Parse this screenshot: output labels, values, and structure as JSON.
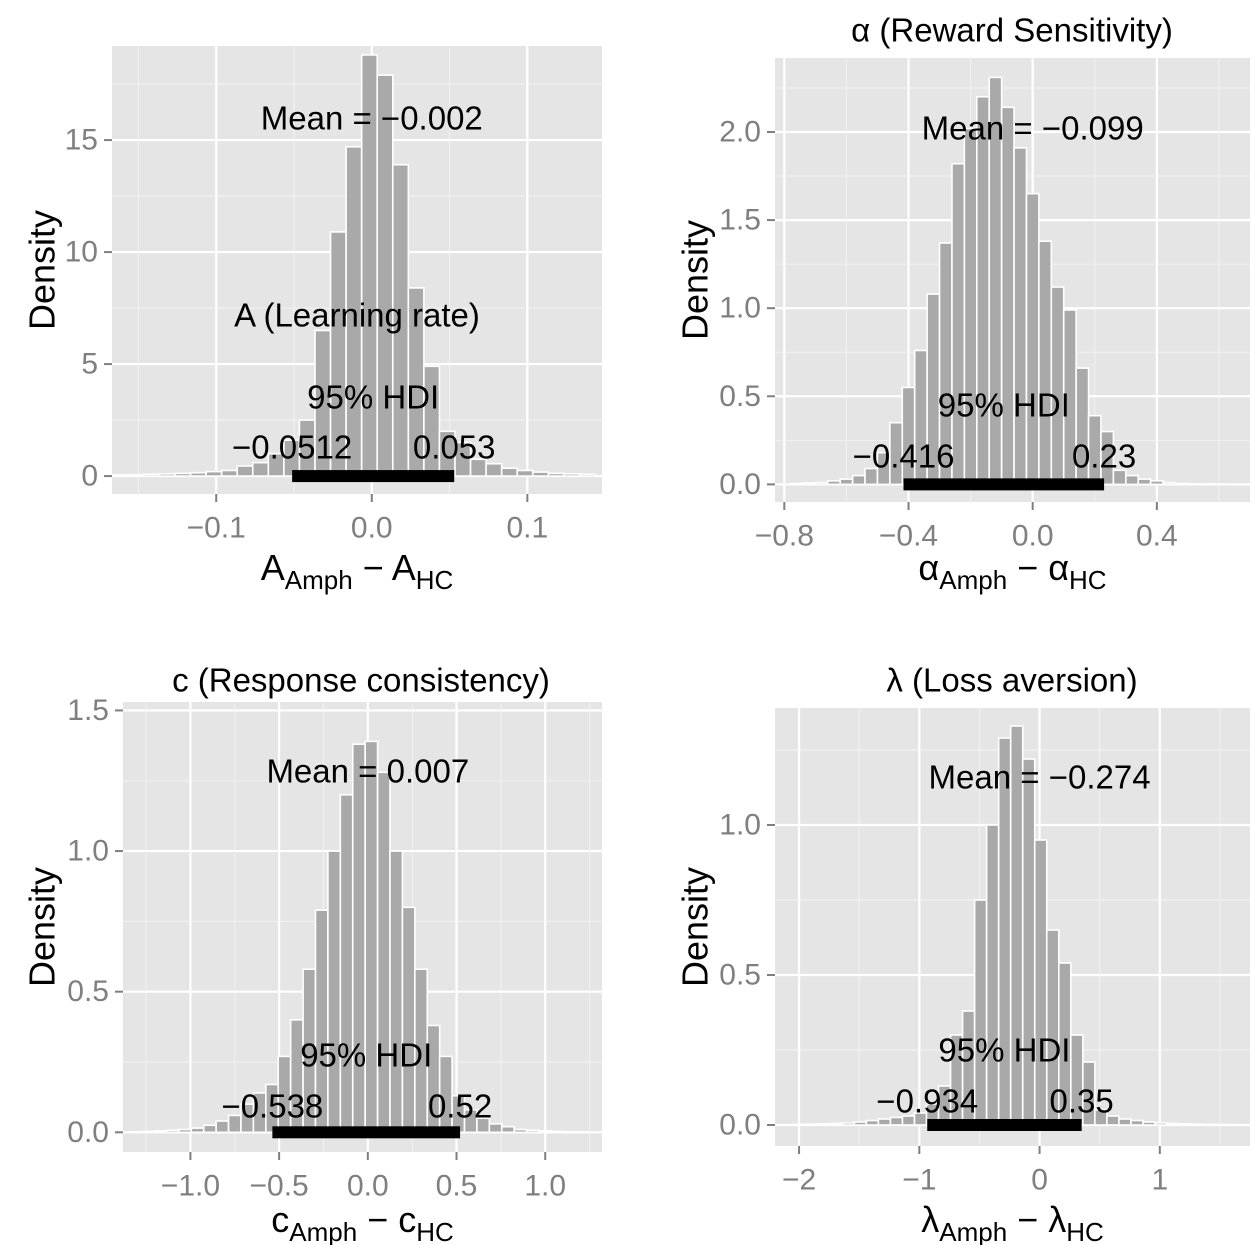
{
  "chart_data": [
    {
      "type": "bar",
      "title": "A (Learning rate)",
      "ylabel": "Density",
      "xlabel": {
        "var": "A",
        "sub1": "Amph",
        "sub2": "HC"
      },
      "xlim": [
        -0.167,
        0.148
      ],
      "ylim": [
        -0.8,
        19.2
      ],
      "xticks": [
        {
          "v": -0.1,
          "label": "−0.1"
        },
        {
          "v": 0.0,
          "label": "0.0"
        },
        {
          "v": 0.1,
          "label": "0.1"
        }
      ],
      "yticks": [
        {
          "v": 0,
          "label": "0"
        },
        {
          "v": 5,
          "label": "5"
        },
        {
          "v": 10,
          "label": "10"
        },
        {
          "v": 15,
          "label": "15"
        }
      ],
      "bin_edges": [
        -0.1665,
        -0.1565,
        -0.1465,
        -0.1365,
        -0.1265,
        -0.1165,
        -0.1065,
        -0.0965,
        -0.0865,
        -0.0765,
        -0.0665,
        -0.0565,
        -0.0465,
        -0.0365,
        -0.0265,
        -0.0165,
        -0.0065,
        0.0035,
        0.0135,
        0.0235,
        0.0335,
        0.0435,
        0.0535,
        0.0635,
        0.0735,
        0.0835,
        0.0935,
        0.1035,
        0.1135,
        0.1235,
        0.1335,
        0.1435
      ],
      "values": [
        0.05,
        0.06,
        0.08,
        0.1,
        0.12,
        0.15,
        0.2,
        0.25,
        0.45,
        0.6,
        1.0,
        1.6,
        2.5,
        6.5,
        10.9,
        14.7,
        18.8,
        17.9,
        13.9,
        8.4,
        4.9,
        2.0,
        1.5,
        0.75,
        0.55,
        0.35,
        0.25,
        0.18,
        0.12,
        0.1,
        0.08
      ],
      "mean_label": "Mean = −0.002",
      "hdi": {
        "label": "95% HDI",
        "low": -0.0512,
        "high": 0.053,
        "low_label": "−0.0512",
        "high_label": "0.053"
      }
    },
    {
      "type": "bar",
      "title": "α (Reward Sensitivity)",
      "ylabel": "Density",
      "xlabel": {
        "var": "α",
        "sub1": "Amph",
        "sub2": "HC"
      },
      "xlim": [
        -0.83,
        0.7
      ],
      "ylim": [
        -0.1,
        2.42
      ],
      "xticks": [
        {
          "v": -0.8,
          "label": "−0.8"
        },
        {
          "v": -0.4,
          "label": "−0.4"
        },
        {
          "v": 0.0,
          "label": "0.0"
        },
        {
          "v": 0.4,
          "label": "0.4"
        }
      ],
      "yticks": [
        {
          "v": 0.0,
          "label": "0.0"
        },
        {
          "v": 0.5,
          "label": "0.5"
        },
        {
          "v": 1.0,
          "label": "1.0"
        },
        {
          "v": 1.5,
          "label": "1.5"
        },
        {
          "v": 2.0,
          "label": "2.0"
        }
      ],
      "bin_edges": [
        -0.78,
        -0.74,
        -0.7,
        -0.66,
        -0.62,
        -0.58,
        -0.54,
        -0.5,
        -0.46,
        -0.42,
        -0.38,
        -0.34,
        -0.3,
        -0.26,
        -0.22,
        -0.18,
        -0.14,
        -0.1,
        -0.06,
        -0.02,
        0.02,
        0.06,
        0.1,
        0.14,
        0.18,
        0.22,
        0.26,
        0.3,
        0.34,
        0.38,
        0.42,
        0.46,
        0.5,
        0.54,
        0.58,
        0.62
      ],
      "values": [
        0.005,
        0.008,
        0.01,
        0.02,
        0.03,
        0.05,
        0.09,
        0.18,
        0.35,
        0.55,
        0.76,
        1.08,
        1.37,
        1.82,
        2.02,
        2.2,
        2.31,
        2.14,
        1.91,
        1.65,
        1.38,
        1.12,
        0.99,
        0.66,
        0.39,
        0.3,
        0.08,
        0.05,
        0.03,
        0.02,
        0.01,
        0.005,
        0.003,
        0.002,
        0.001
      ],
      "mean_label": "Mean = −0.099",
      "hdi": {
        "label": "95% HDI",
        "low": -0.416,
        "high": 0.23,
        "low_label": "−0.416",
        "high_label": "0.23"
      }
    },
    {
      "type": "bar",
      "title": "c (Response consistency)",
      "ylabel": "Density",
      "xlabel": {
        "var": "c",
        "sub1": "Amph",
        "sub2": "HC"
      },
      "xlim": [
        -1.38,
        1.32
      ],
      "ylim": [
        -0.07,
        1.53
      ],
      "xticks": [
        {
          "v": -1.0,
          "label": "−1.0"
        },
        {
          "v": -0.5,
          "label": "−0.5"
        },
        {
          "v": 0.0,
          "label": "0.0"
        },
        {
          "v": 0.5,
          "label": "0.5"
        },
        {
          "v": 1.0,
          "label": "1.0"
        }
      ],
      "yticks": [
        {
          "v": 0.0,
          "label": "0.0"
        },
        {
          "v": 0.5,
          "label": "0.5"
        },
        {
          "v": 1.0,
          "label": "1.0"
        },
        {
          "v": 1.5,
          "label": "1.5"
        }
      ],
      "bin_edges": [
        -1.345,
        -1.275,
        -1.205,
        -1.135,
        -1.065,
        -0.995,
        -0.925,
        -0.855,
        -0.785,
        -0.715,
        -0.645,
        -0.575,
        -0.505,
        -0.435,
        -0.365,
        -0.295,
        -0.225,
        -0.155,
        -0.085,
        -0.015,
        0.055,
        0.125,
        0.195,
        0.265,
        0.335,
        0.405,
        0.475,
        0.545,
        0.615,
        0.685,
        0.755,
        0.825,
        0.895,
        0.965,
        1.035,
        1.105,
        1.175,
        1.245
      ],
      "values": [
        0.002,
        0.003,
        0.005,
        0.007,
        0.01,
        0.015,
        0.025,
        0.04,
        0.06,
        0.1,
        0.14,
        0.17,
        0.27,
        0.4,
        0.58,
        0.79,
        1.0,
        1.2,
        1.38,
        1.39,
        1.28,
        1.0,
        0.8,
        0.58,
        0.38,
        0.27,
        0.13,
        0.08,
        0.05,
        0.03,
        0.02,
        0.01,
        0.007,
        0.005,
        0.003,
        0.002,
        0.001
      ],
      "mean_label": "Mean = 0.007",
      "hdi": {
        "label": "95% HDI",
        "low": -0.538,
        "high": 0.52,
        "low_label": "−0.538",
        "high_label": "0.52"
      }
    },
    {
      "type": "bar",
      "title": "λ (Loss aversion)",
      "ylabel": "Density",
      "xlabel": {
        "var": "λ",
        "sub1": "Amph",
        "sub2": "HC"
      },
      "xlim": [
        -2.2,
        1.75
      ],
      "ylim": [
        -0.07,
        1.39
      ],
      "xticks": [
        {
          "v": -2,
          "label": "−2"
        },
        {
          "v": -1,
          "label": "−1"
        },
        {
          "v": 0,
          "label": "0"
        },
        {
          "v": 1,
          "label": "1"
        }
      ],
      "yticks": [
        {
          "v": 0.0,
          "label": "0.0"
        },
        {
          "v": 0.5,
          "label": "0.5"
        },
        {
          "v": 1.0,
          "label": "1.0"
        }
      ],
      "bin_edges": [
        -2.04,
        -1.94,
        -1.84,
        -1.74,
        -1.64,
        -1.54,
        -1.44,
        -1.34,
        -1.24,
        -1.14,
        -1.04,
        -0.94,
        -0.84,
        -0.74,
        -0.64,
        -0.54,
        -0.44,
        -0.34,
        -0.24,
        -0.14,
        -0.04,
        0.06,
        0.16,
        0.26,
        0.36,
        0.46,
        0.56,
        0.66,
        0.76,
        0.86,
        0.96,
        1.06,
        1.16,
        1.26,
        1.36,
        1.46,
        1.56,
        1.66
      ],
      "values": [
        0.002,
        0.003,
        0.004,
        0.005,
        0.007,
        0.01,
        0.015,
        0.02,
        0.025,
        0.03,
        0.04,
        0.07,
        0.13,
        0.3,
        0.38,
        0.75,
        1.0,
        1.29,
        1.33,
        1.22,
        0.95,
        0.65,
        0.54,
        0.3,
        0.21,
        0.05,
        0.03,
        0.02,
        0.015,
        0.01,
        0.007,
        0.005,
        0.004,
        0.003,
        0.002,
        0.002,
        0.001
      ],
      "mean_label": "Mean = −0.274",
      "hdi": {
        "label": "95% HDI",
        "low": -0.934,
        "high": 0.35,
        "low_label": "−0.934",
        "high_label": "0.35"
      }
    }
  ]
}
